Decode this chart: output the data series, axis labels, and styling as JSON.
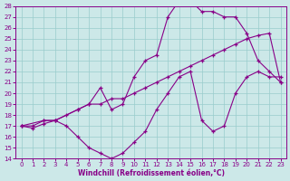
{
  "xlabel": "Windchill (Refroidissement éolien,°C)",
  "bg_color": "#cce8e8",
  "grid_color": "#99cccc",
  "line_color": "#880088",
  "xlim": [
    -0.5,
    23.5
  ],
  "ylim": [
    14,
    28
  ],
  "xticks": [
    0,
    1,
    2,
    3,
    4,
    5,
    6,
    7,
    8,
    9,
    10,
    11,
    12,
    13,
    14,
    15,
    16,
    17,
    18,
    19,
    20,
    21,
    22,
    23
  ],
  "yticks": [
    14,
    15,
    16,
    17,
    18,
    19,
    20,
    21,
    22,
    23,
    24,
    25,
    26,
    27,
    28
  ],
  "curve1_x": [
    0,
    1,
    2,
    3,
    4,
    5,
    6,
    7,
    8,
    9,
    10,
    11,
    12,
    13,
    14,
    15,
    16,
    17,
    18,
    19,
    20,
    21,
    22,
    23
  ],
  "curve1_y": [
    17.0,
    16.8,
    17.2,
    17.5,
    18.0,
    18.5,
    19.0,
    19.0,
    19.5,
    19.5,
    20.0,
    20.5,
    21.0,
    21.5,
    22.0,
    22.5,
    23.0,
    23.5,
    24.0,
    24.5,
    25.0,
    25.3,
    25.5,
    21.0
  ],
  "curve2_x": [
    0,
    2,
    3,
    5,
    6,
    7,
    8,
    9,
    10,
    11,
    12,
    13,
    14,
    15,
    16,
    17,
    18,
    19,
    20,
    21,
    22,
    23
  ],
  "curve2_y": [
    17.0,
    17.5,
    17.5,
    18.5,
    19.0,
    20.5,
    18.5,
    19.0,
    21.5,
    23.0,
    23.5,
    27.0,
    28.5,
    28.5,
    27.5,
    27.5,
    27.0,
    27.0,
    25.5,
    23.0,
    22.0,
    21.0
  ],
  "curve3_x": [
    0,
    1,
    2,
    3,
    4,
    5,
    6,
    7,
    8,
    9,
    10,
    11,
    12,
    13,
    14,
    15,
    16,
    17,
    18,
    19,
    20,
    21,
    22,
    23
  ],
  "curve3_y": [
    17.0,
    17.0,
    17.5,
    17.5,
    17.0,
    16.0,
    15.0,
    14.5,
    14.0,
    14.5,
    15.5,
    16.5,
    18.5,
    20.0,
    21.5,
    22.0,
    17.5,
    16.5,
    17.0,
    20.0,
    21.5,
    22.0,
    21.5,
    21.5
  ]
}
